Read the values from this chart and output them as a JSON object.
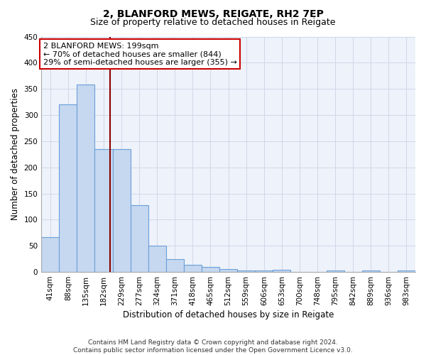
{
  "title1": "2, BLANFORD MEWS, REIGATE, RH2 7EP",
  "title2": "Size of property relative to detached houses in Reigate",
  "xlabel": "Distribution of detached houses by size in Reigate",
  "ylabel": "Number of detached properties",
  "categories": [
    "41sqm",
    "88sqm",
    "135sqm",
    "182sqm",
    "229sqm",
    "277sqm",
    "324sqm",
    "371sqm",
    "418sqm",
    "465sqm",
    "512sqm",
    "559sqm",
    "606sqm",
    "653sqm",
    "700sqm",
    "748sqm",
    "795sqm",
    "842sqm",
    "889sqm",
    "936sqm",
    "983sqm"
  ],
  "values": [
    67,
    320,
    358,
    235,
    235,
    127,
    50,
    24,
    14,
    9,
    6,
    3,
    3,
    4,
    0,
    0,
    3,
    0,
    3,
    0,
    3
  ],
  "bar_color": "#c5d8f0",
  "bar_edge_color": "#6a9fd8",
  "bar_linewidth": 0.8,
  "redline_x": 3.37,
  "annotation_line1": "2 BLANFORD MEWS: 199sqm",
  "annotation_line2": "← 70% of detached houses are smaller (844)",
  "annotation_line3": "29% of semi-detached houses are larger (355) →",
  "annotation_box_color": "#ffffff",
  "annotation_box_edge": "#cc0000",
  "redline_color": "#8b0000",
  "ylim": [
    0,
    450
  ],
  "yticks": [
    0,
    50,
    100,
    150,
    200,
    250,
    300,
    350,
    400,
    450
  ],
  "grid_color": "#d0d8e8",
  "background_color": "#eef2fa",
  "footer": "Contains HM Land Registry data © Crown copyright and database right 2024.\nContains public sector information licensed under the Open Government Licence v3.0.",
  "title1_fontsize": 10,
  "title2_fontsize": 9,
  "xlabel_fontsize": 8.5,
  "ylabel_fontsize": 8.5,
  "tick_fontsize": 7.5,
  "footer_fontsize": 6.5,
  "annotation_fontsize": 8
}
